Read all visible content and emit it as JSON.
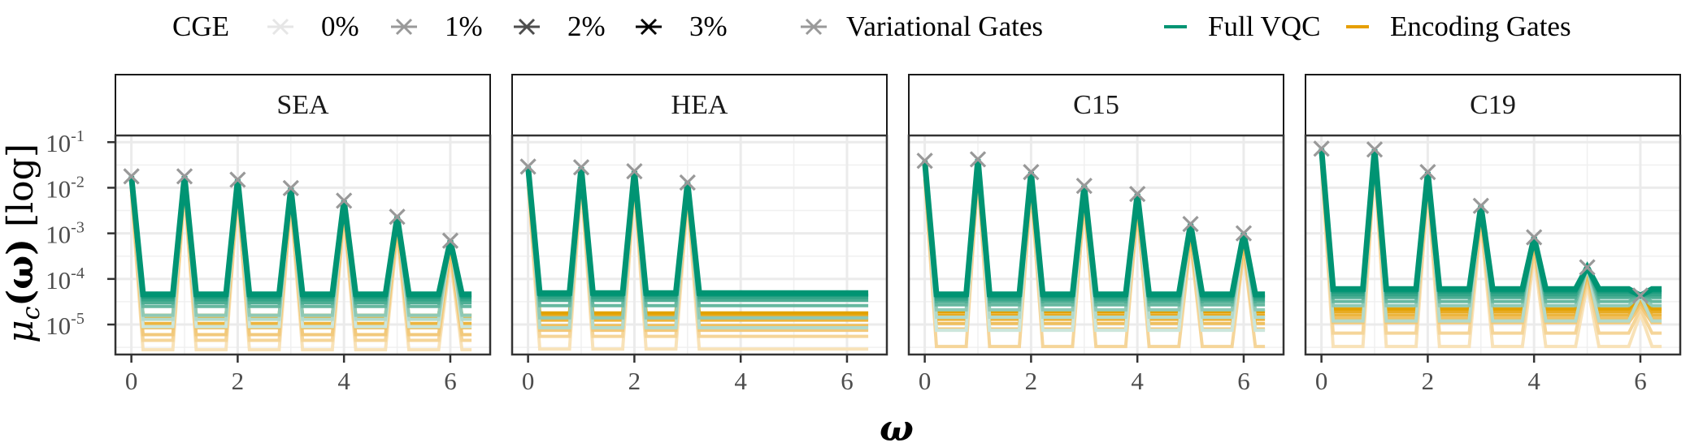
{
  "chart_data": {
    "type": "line",
    "title": "",
    "xlabel": "ω",
    "ylabel": "μ_c(ω) [log]",
    "ylabel_parts": {
      "mu": "μ",
      "sub": "c",
      "arg": "(ω)",
      "suffix": " [log]"
    },
    "yscale": "log",
    "ylim": [
      2.2e-06,
      0.14
    ],
    "xlim": [
      -0.3,
      6.75
    ],
    "x_ticks": [
      0,
      2,
      4,
      6
    ],
    "x_tick_labels": [
      "0",
      "2",
      "4",
      "6"
    ],
    "y_ticks": [
      0.1,
      0.01,
      0.001,
      0.0001,
      1e-05
    ],
    "y_tick_labels": [
      {
        "base": "10",
        "exp": "-1"
      },
      {
        "base": "10",
        "exp": "-2"
      },
      {
        "base": "10",
        "exp": "-3"
      },
      {
        "base": "10",
        "exp": "-4"
      },
      {
        "base": "10",
        "exp": "-5"
      }
    ],
    "grid": true,
    "legend": {
      "placement": "top",
      "cge_title": "CGE",
      "cge_levels": [
        {
          "label": "0%",
          "color": "#e6e6e6"
        },
        {
          "label": "1%",
          "color": "#999999"
        },
        {
          "label": "2%",
          "color": "#4d4d4d"
        },
        {
          "label": "3%",
          "color": "#000000"
        }
      ],
      "type_entries": [
        {
          "label": "Variational Gates",
          "kind": "cross",
          "color": "#999999"
        },
        {
          "label": "Full VQC",
          "kind": "line",
          "color": "#009473"
        },
        {
          "label": "Encoding Gates",
          "kind": "line",
          "color": "#e69f00"
        }
      ]
    },
    "colors": {
      "full_vqc": "#009473",
      "encoding_gates": "#e69f00",
      "variational_gates": "#999999"
    },
    "x_end": 6.4,
    "panels": [
      {
        "name": "SEA",
        "variational_gates": {
          "x": [
            0,
            1,
            2,
            3,
            4,
            5,
            6
          ],
          "y": [
            0.0178,
            0.0178,
            0.015,
            0.0098,
            0.0052,
            0.0023,
            0.00069
          ]
        },
        "full_vqc_plateaus": [
          4.6e-05,
          4e-05,
          3.5e-05,
          3e-05,
          2.5e-05,
          1.6e-05,
          1.3e-05,
          9e-06
        ],
        "encoding_plateaus": [
          1.6e-05,
          1.35e-05,
          1.05e-05,
          8.5e-06,
          6e-06,
          4.5e-06,
          2.8e-06
        ]
      },
      {
        "name": "HEA",
        "variational_gates": {
          "x": [
            0,
            1,
            2,
            3
          ],
          "y": [
            0.029,
            0.028,
            0.023,
            0.013
          ]
        },
        "full_vqc_plateaus": [
          4.9e-05,
          4.4e-05,
          3.9e-05,
          3.4e-05,
          2.6e-05,
          1.4e-05,
          8.5e-06
        ],
        "encoding_plateaus": [
          1.8e-05,
          1.55e-05,
          1.25e-05,
          9.5e-06,
          7.5e-06,
          5.5e-06,
          2.9e-06
        ]
      },
      {
        "name": "C15",
        "variational_gates": {
          "x": [
            0,
            1,
            2,
            3,
            4,
            5,
            6
          ],
          "y": [
            0.039,
            0.042,
            0.022,
            0.011,
            0.0073,
            0.0016,
            0.001
          ]
        },
        "full_vqc_plateaus": [
          4.6e-05,
          4.1e-05,
          3.6e-05,
          3.2e-05,
          2.7e-05,
          2.1e-05,
          1.45e-05,
          7.5e-06
        ],
        "encoding_plateaus": [
          1.9e-05,
          1.6e-05,
          1.3e-05,
          1.05e-05,
          8e-06,
          3.3e-06
        ]
      },
      {
        "name": "C19",
        "variational_gates": {
          "x": [
            0,
            1,
            2,
            3,
            4,
            5,
            6
          ],
          "y": [
            0.072,
            0.069,
            0.022,
            0.004,
            0.00082,
            0.00018,
            4.3e-05
          ]
        },
        "full_vqc_plateaus": [
          6e-05,
          5.2e-05,
          4.5e-05,
          3.9e-05,
          3.2e-05,
          2.6e-05,
          1.2e-05
        ],
        "encoding_plateaus": [
          2.2e-05,
          1.9e-05,
          1.6e-05,
          1.35e-05,
          1.1e-05,
          6.5e-06,
          3.3e-06
        ]
      }
    ]
  }
}
